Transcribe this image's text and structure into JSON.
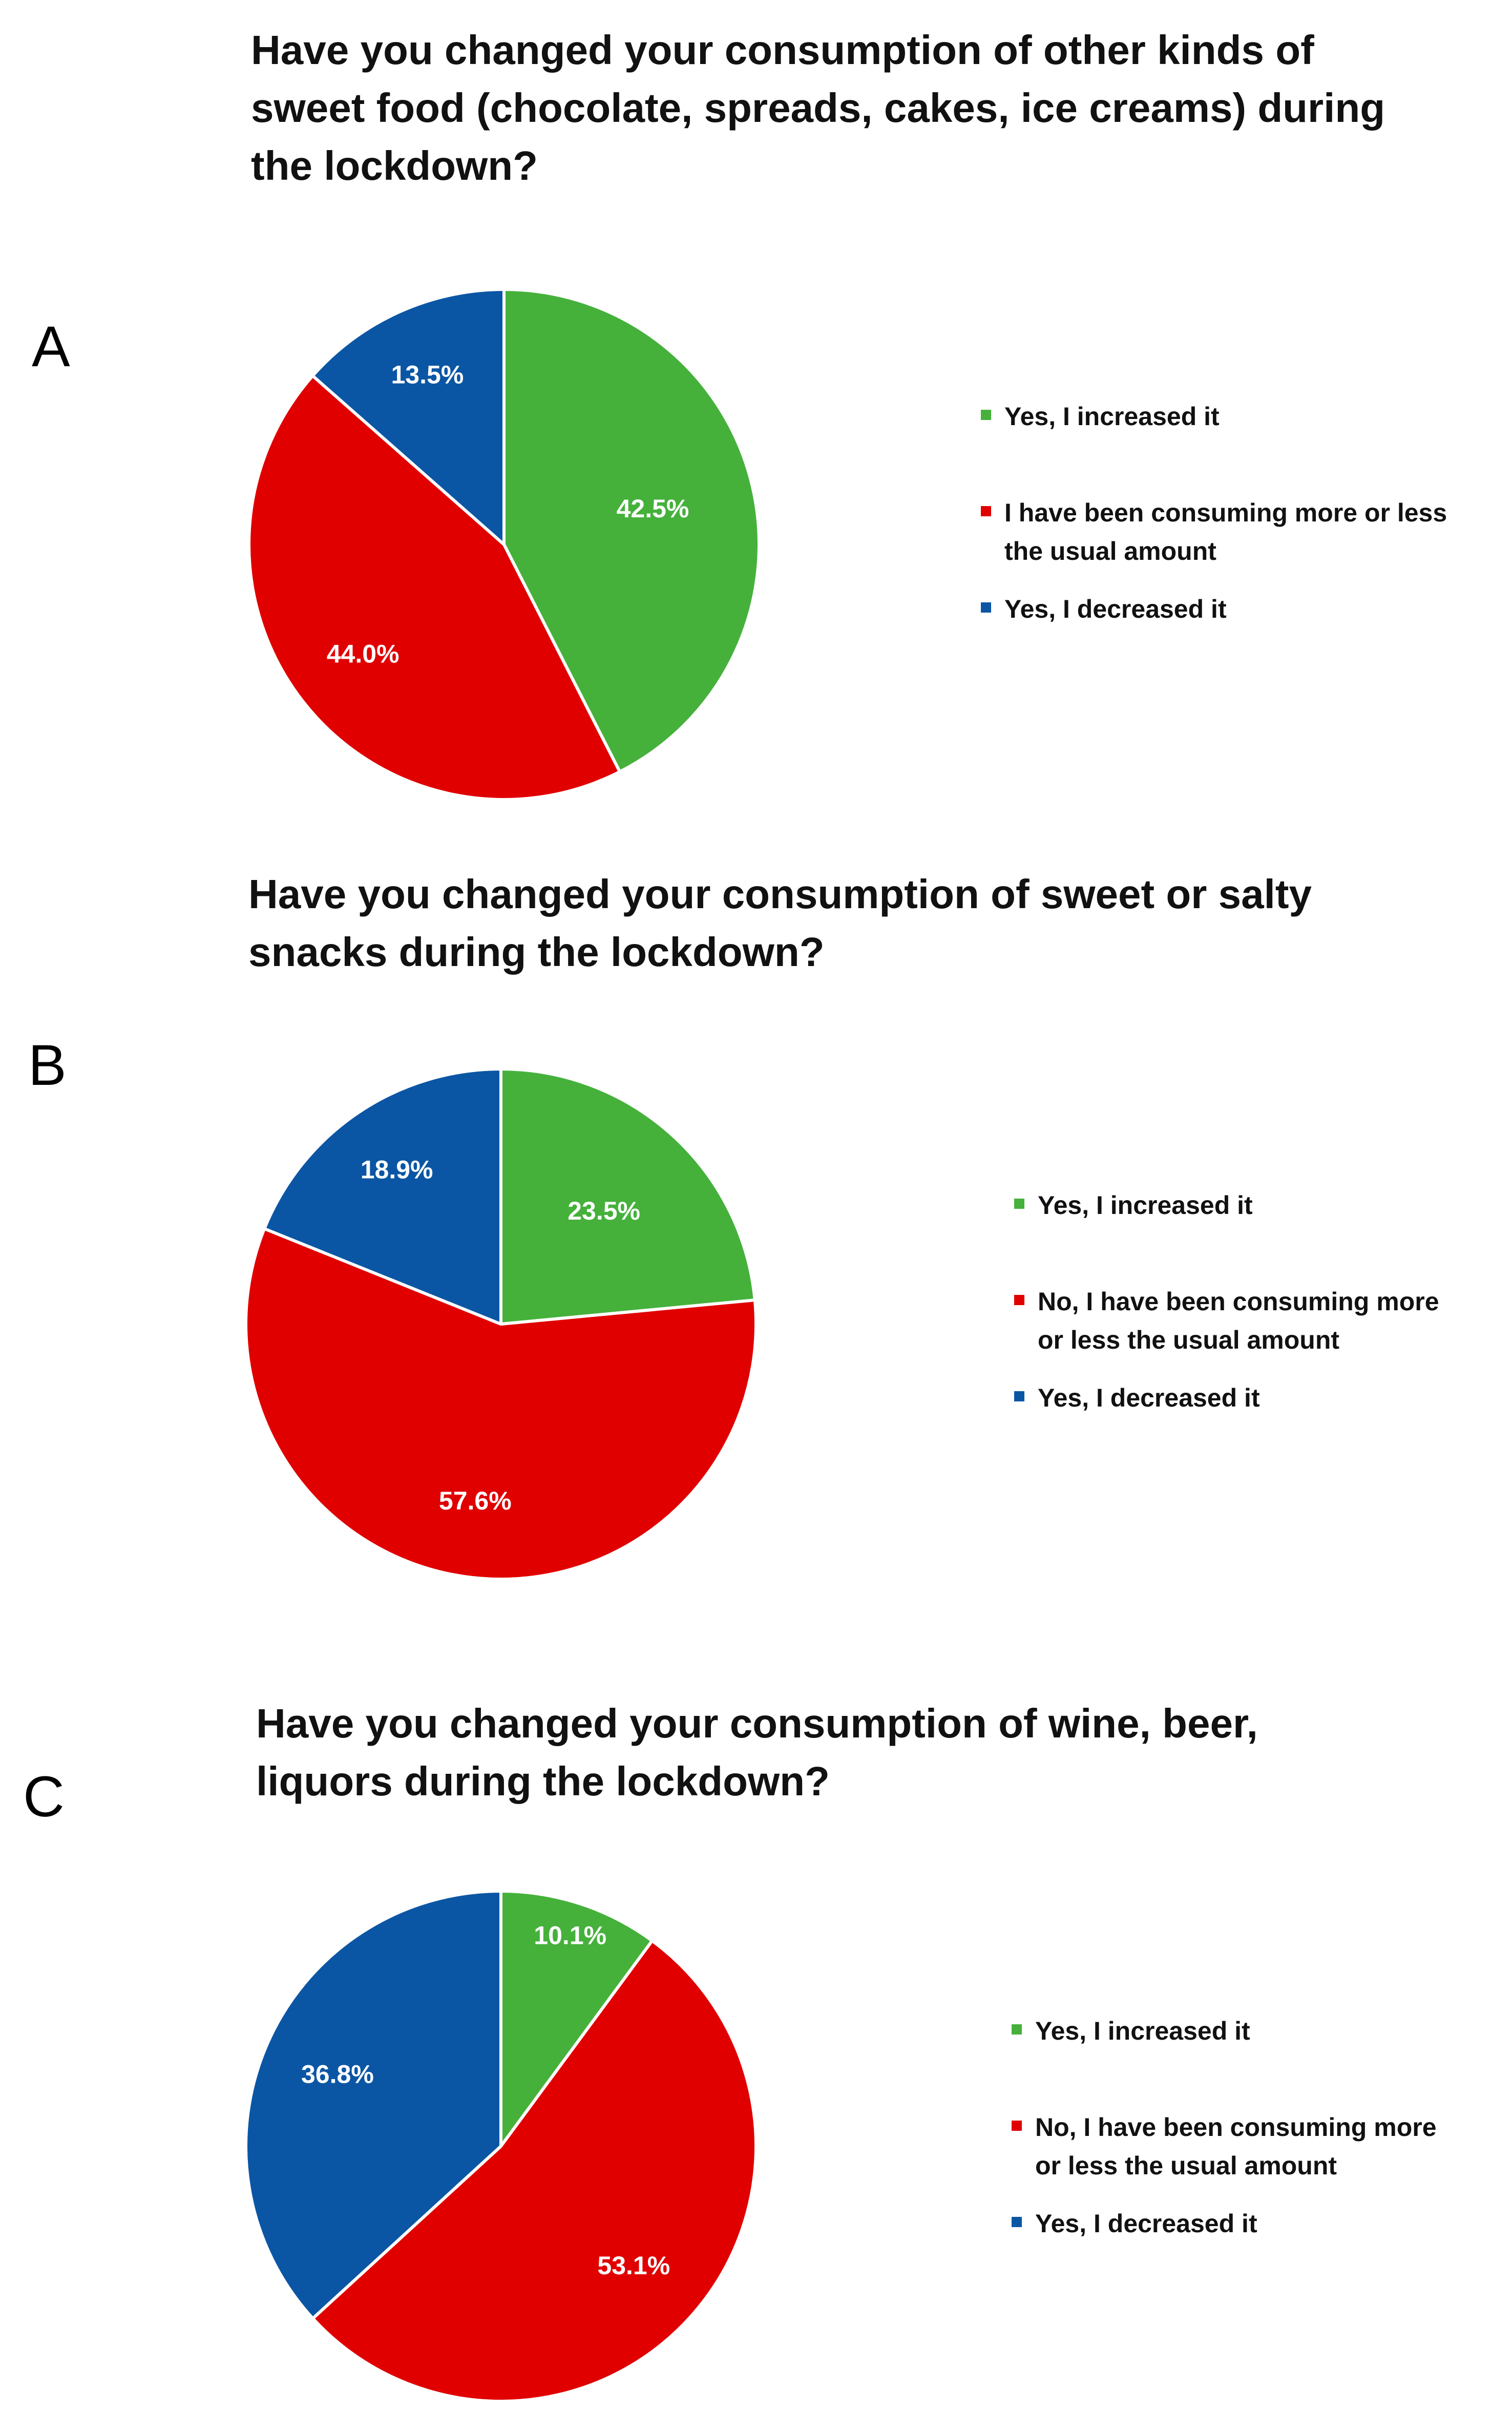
{
  "chart_data": [
    {
      "type": "pie",
      "panel": "A",
      "title": "Have you changed your consumption of other kinds of sweet food (chocolate, spreads, cakes, ice creams) during the lockdown?",
      "title_lines": [
        "Have you changed your consumption of other kinds of",
        "sweet food (chocolate, spreads, cakes, ice creams) during",
        "the lockdown?"
      ],
      "slices": [
        {
          "label": "Yes, I increased it",
          "value": 42.5,
          "display": "42.5%",
          "color": "#45B13B"
        },
        {
          "label": "I have been consuming more or less the usual amount",
          "value": 44.0,
          "display": "44.0%",
          "color": "#E00000"
        },
        {
          "label": "Yes, I decreased it",
          "value": 13.5,
          "display": "13.5%",
          "color": "#0B56A4"
        }
      ],
      "legend": [
        {
          "lines": [
            "Yes, I increased it"
          ],
          "color": "#45B13B"
        },
        {
          "lines": [
            "I have been consuming more or less",
            "the usual amount"
          ],
          "color": "#E00000"
        },
        {
          "lines": [
            "Yes, I decreased it"
          ],
          "color": "#0B56A4"
        }
      ],
      "legend_position": "right"
    },
    {
      "type": "pie",
      "panel": "B",
      "title": "Have you changed your consumption of sweet or salty snacks during the lockdown?",
      "title_lines": [
        "Have you changed your consumption of sweet or salty",
        "snacks during the lockdown?"
      ],
      "slices": [
        {
          "label": "Yes, I increased it",
          "value": 23.5,
          "display": "23.5%",
          "color": "#45B13B"
        },
        {
          "label": "No, I have been consuming more or less the usual amount",
          "value": 57.6,
          "display": "57.6%",
          "color": "#E00000"
        },
        {
          "label": "Yes, I decreased it",
          "value": 18.9,
          "display": "18.9%",
          "color": "#0B56A4"
        }
      ],
      "legend": [
        {
          "lines": [
            "Yes, I increased it"
          ],
          "color": "#45B13B"
        },
        {
          "lines": [
            "No, I have been consuming more",
            "or less the usual amount"
          ],
          "color": "#E00000"
        },
        {
          "lines": [
            "Yes, I decreased it"
          ],
          "color": "#0B56A4"
        }
      ],
      "legend_position": "right"
    },
    {
      "type": "pie",
      "panel": "C",
      "title": "Have you changed your consumption of wine, beer, liquors during the lockdown?",
      "title_lines": [
        "Have you changed your consumption of wine, beer,",
        "liquors during the lockdown?"
      ],
      "slices": [
        {
          "label": "Yes, I increased it",
          "value": 10.1,
          "display": "10.1%",
          "color": "#45B13B"
        },
        {
          "label": "No, I have been consuming more or less the usual amount",
          "value": 53.1,
          "display": "53.1%",
          "color": "#E00000"
        },
        {
          "label": "Yes, I decreased it",
          "value": 36.8,
          "display": "36.8%",
          "color": "#0B56A4"
        }
      ],
      "legend": [
        {
          "lines": [
            "Yes, I increased it"
          ],
          "color": "#45B13B"
        },
        {
          "lines": [
            "No, I have been consuming more",
            "or less the usual amount"
          ],
          "color": "#E00000"
        },
        {
          "lines": [
            "Yes, I decreased it"
          ],
          "color": "#0B56A4"
        }
      ],
      "legend_position": "right"
    }
  ]
}
